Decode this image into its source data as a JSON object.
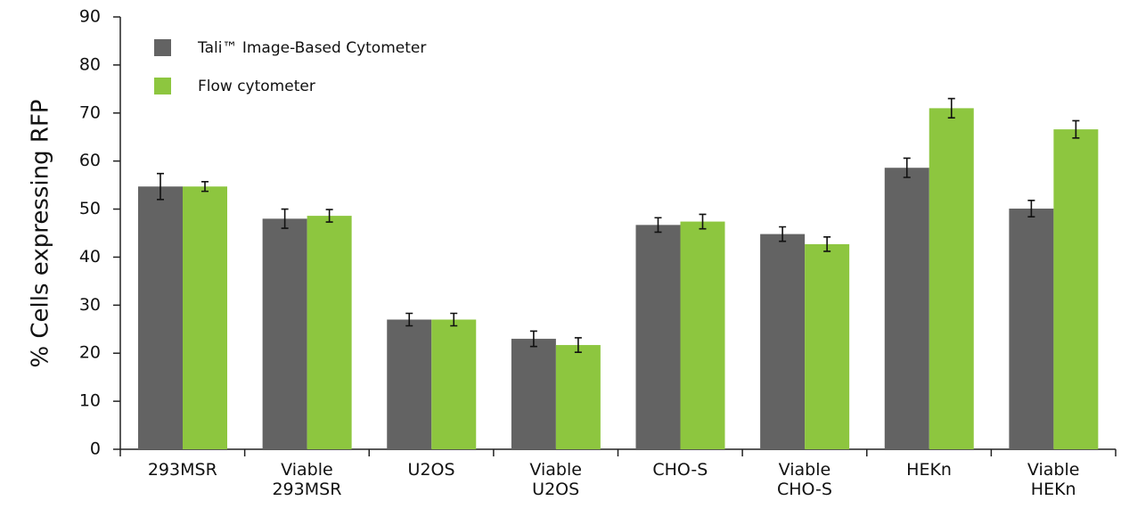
{
  "chart_data": {
    "type": "bar",
    "y_label": "% Cells expressing RFP",
    "categories": [
      "293MSR",
      "Viable\n293MSR",
      "U2OS",
      "Viable\nU2OS",
      "CHO-S",
      "Viable\nCHO-S",
      "HEKn",
      "Viable\nHEKn"
    ],
    "series": [
      {
        "name": "Tali™ Image-Based Cytometer",
        "color": "#636363",
        "values": [
          54.7,
          48,
          27,
          23,
          46.7,
          44.8,
          58.6,
          50.1
        ],
        "errors": [
          2.7,
          2,
          1.3,
          1.6,
          1.5,
          1.5,
          2,
          1.7
        ]
      },
      {
        "name": "Flow cytometer",
        "color": "#8dc63f",
        "values": [
          54.7,
          48.6,
          27,
          21.7,
          47.4,
          42.7,
          71,
          66.6
        ],
        "errors": [
          1,
          1.3,
          1.3,
          1.5,
          1.5,
          1.5,
          2,
          1.8
        ]
      }
    ],
    "ylim": [
      0,
      90
    ],
    "yticks": [
      0,
      10,
      20,
      30,
      40,
      50,
      60,
      70,
      80,
      90
    ],
    "legend": "top-left"
  }
}
